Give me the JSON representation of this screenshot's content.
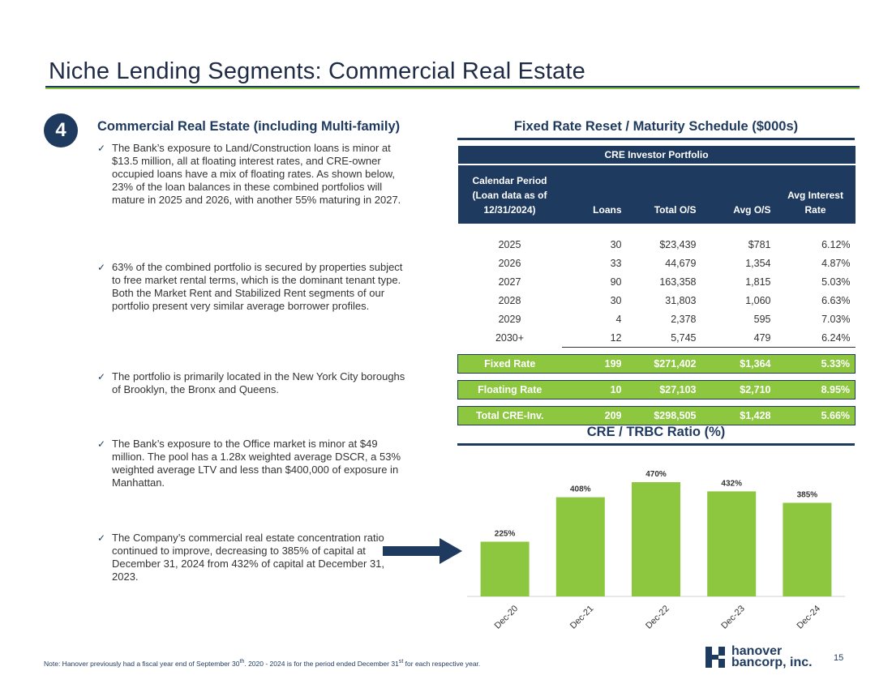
{
  "page": {
    "title": "Niche Lending Segments: Commercial Real Estate",
    "badge_number": "4",
    "page_number": "15"
  },
  "left": {
    "heading": "Commercial Real Estate (including Multi-family)",
    "bullets": [
      "The Bank’s exposure to Land/Construction loans is minor at $13.5 million, all at floating interest rates, and CRE-owner occupied loans have a mix of floating rates. As shown below, 23% of the loan balances in these combined portfolios will mature in 2025 and 2026, with another 55% maturing in 2027.",
      "63% of the combined portfolio is secured by properties subject to free market rental terms, which is the dominant tenant type. Both the Market Rent and Stabilized Rent segments of our portfolio present very similar average borrower profiles.",
      "The portfolio is primarily located in the New York City boroughs of Brooklyn, the Bronx and Queens.",
      "The Bank’s exposure to the Office market is minor at $49 million. The pool has a 1.28x weighted average DSCR, a 53% weighted average LTV and less than $400,000 of exposure in Manhattan.",
      "The Company’s commercial real estate concentration ratio continued to improve, decreasing to 385% of capital at December 31, 2024 from 432% of capital at December 31, 2023."
    ],
    "check_glyph": "✓"
  },
  "schedule": {
    "heading": "Fixed Rate Reset / Maturity Schedule ($000s)",
    "caption": "CRE Investor Portfolio",
    "columns": [
      "Calendar Period (Loan data as of 12/31/2024)",
      "Loans",
      "Total O/S",
      "Avg O/S",
      "Avg Interest Rate"
    ],
    "rows": [
      [
        "2025",
        "30",
        "$23,439",
        "$781",
        "6.12%"
      ],
      [
        "2026",
        "33",
        "44,679",
        "1,354",
        "4.87%"
      ],
      [
        "2027",
        "90",
        "163,358",
        "1,815",
        "5.03%"
      ],
      [
        "2028",
        "30",
        "31,803",
        "1,060",
        "6.63%"
      ],
      [
        "2029",
        "4",
        "2,378",
        "595",
        "7.03%"
      ],
      [
        "2030+",
        "12",
        "5,745",
        "479",
        "6.24%"
      ]
    ],
    "fixed": [
      "Fixed Rate",
      "199",
      "$271,402",
      "$1,364",
      "5.33%"
    ],
    "floating": [
      "Floating Rate",
      "10",
      "$27,103",
      "$2,710",
      "8.95%"
    ],
    "total": [
      "Total CRE-Inv.",
      "209",
      "$298,505",
      "$1,428",
      "5.66%"
    ]
  },
  "chart_title": "CRE / TRBC Ratio (%)",
  "chart_data": {
    "type": "bar",
    "title": "CRE / TRBC Ratio (%)",
    "categories": [
      "Dec-20",
      "Dec-21",
      "Dec-22",
      "Dec-23",
      "Dec-24"
    ],
    "values": [
      225,
      408,
      470,
      432,
      385
    ],
    "value_labels": [
      "225%",
      "408%",
      "470%",
      "432%",
      "385%"
    ],
    "ylim": [
      0,
      500
    ],
    "bar_color": "#8dc63f",
    "grid": false
  },
  "footnote": {
    "before1": "Note: Hanover previously had a fiscal year end of September 30",
    "sup1": "th",
    "mid": ". 2020 - 2024 is for the period ended December 31",
    "sup2": "st",
    "after": " for each respective year."
  },
  "logo": {
    "line1": "hanover",
    "line2": "bancorp, inc."
  },
  "colors": {
    "navy": "#1f3a5f",
    "green": "#8dc63f"
  }
}
